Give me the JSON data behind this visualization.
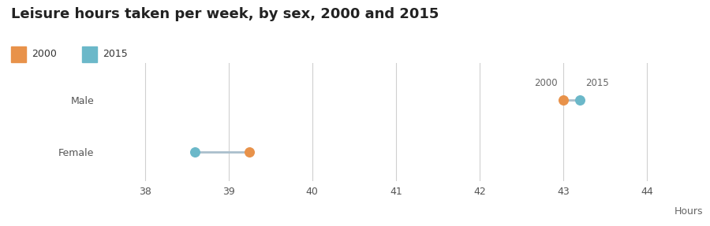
{
  "title": "Leisure hours taken per week, by sex, 2000 and 2015",
  "xlabel": "Hours",
  "categories": [
    "Male",
    "Female"
  ],
  "male_2000": 43.0,
  "male_2015": 43.2,
  "female_2000": 39.25,
  "female_2015": 38.6,
  "color_2000": "#E8924A",
  "color_2015": "#6BB8C9",
  "connector_color": "#AABFCC",
  "xlim": [
    37.5,
    44.5
  ],
  "xticks": [
    38,
    39,
    40,
    41,
    42,
    43,
    44
  ],
  "background_color": "#ffffff",
  "title_fontsize": 13,
  "axis_label_fontsize": 9,
  "tick_fontsize": 9,
  "dot_size": 70,
  "legend_2000": "2000",
  "legend_2015": "2015"
}
